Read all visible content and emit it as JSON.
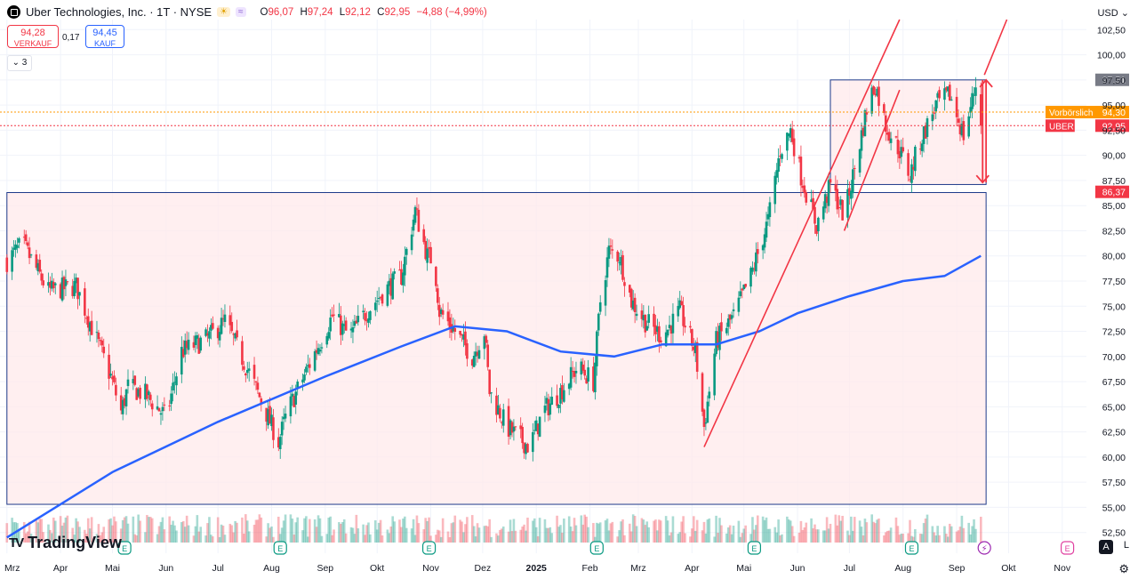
{
  "header": {
    "symbol_title": "Uber Technologies, Inc. · 1T · NYSE",
    "open_label": "O",
    "open": "96,07",
    "high_label": "H",
    "high": "97,24",
    "low_label": "L",
    "low": "92,12",
    "close_label": "C",
    "close": "92,95",
    "change": "−4,88 (−4,99%)",
    "sell_price": "94,28",
    "sell_label": "VERKAUF",
    "spread": "0,17",
    "buy_price": "94,45",
    "buy_label": "KAUF",
    "indicator_count": "3",
    "currency": "USD",
    "watermark": "TradingView",
    "watermark_icon": "TV",
    "auto_button": "A",
    "log_button": "L"
  },
  "colors": {
    "up": "#089981",
    "down": "#f23645",
    "ma": "#2962ff",
    "zone_fill": "#ffe9eb",
    "zone_border": "#1e3a8a",
    "trend_line": "#f23645",
    "premarket": "#ff9800"
  },
  "chart_data": {
    "type": "candlestick",
    "title": "Uber Technologies, Inc. · 1T · NYSE",
    "yaxis": {
      "ticks": [
        "52,50",
        "55,00",
        "57,50",
        "60,00",
        "62,50",
        "65,00",
        "67,50",
        "70,00",
        "72,50",
        "75,00",
        "77,50",
        "80,00",
        "82,50",
        "85,00",
        "87,50",
        "90,00",
        "92,50",
        "95,00",
        "97,50",
        "100,00",
        "102,50"
      ],
      "range": [
        51.5,
        103.5
      ]
    },
    "xaxis": {
      "ticks": [
        "Mrz",
        "Apr",
        "Mai",
        "Jun",
        "Jul",
        "Aug",
        "Sep",
        "Okt",
        "Nov",
        "Dez",
        "2025",
        "Feb",
        "Mrz",
        "Apr",
        "Mai",
        "Jun",
        "Jul",
        "Aug",
        "Sep",
        "Okt",
        "Nov"
      ]
    },
    "price_anchors": [
      {
        "date": "2024-03-01",
        "close": 79.5
      },
      {
        "date": "2024-03-10",
        "close": 81.2
      },
      {
        "date": "2024-03-25",
        "close": 76.5
      },
      {
        "date": "2024-04-10",
        "close": 77.0
      },
      {
        "date": "2024-04-20",
        "close": 72.5
      },
      {
        "date": "2024-04-30",
        "close": 68.0
      },
      {
        "date": "2024-05-06",
        "close": 64.5
      },
      {
        "date": "2024-05-10",
        "close": 67.0
      },
      {
        "date": "2024-05-20",
        "close": 66.2
      },
      {
        "date": "2024-06-01",
        "close": 64.0
      },
      {
        "date": "2024-06-10",
        "close": 70.5
      },
      {
        "date": "2024-06-25",
        "close": 71.8
      },
      {
        "date": "2024-07-05",
        "close": 73.5
      },
      {
        "date": "2024-07-20",
        "close": 68.0
      },
      {
        "date": "2024-08-05",
        "close": 61.5
      },
      {
        "date": "2024-08-10",
        "close": 64.5
      },
      {
        "date": "2024-08-25",
        "close": 70.0
      },
      {
        "date": "2024-09-05",
        "close": 74.0
      },
      {
        "date": "2024-09-15",
        "close": 72.0
      },
      {
        "date": "2024-09-25",
        "close": 74.5
      },
      {
        "date": "2024-10-05",
        "close": 76.5
      },
      {
        "date": "2024-10-15",
        "close": 78.0
      },
      {
        "date": "2024-10-23",
        "close": 84.5
      },
      {
        "date": "2024-10-30",
        "close": 80.0
      },
      {
        "date": "2024-11-03",
        "close": 79.5
      },
      {
        "date": "2024-11-06",
        "close": 74.5
      },
      {
        "date": "2024-11-15",
        "close": 72.5
      },
      {
        "date": "2024-11-25",
        "close": 70.0
      },
      {
        "date": "2024-12-02",
        "close": 72.5
      },
      {
        "date": "2024-12-05",
        "close": 66.5
      },
      {
        "date": "2024-12-15",
        "close": 63.0
      },
      {
        "date": "2024-12-28",
        "close": 61.0
      },
      {
        "date": "2025-01-05",
        "close": 64.5
      },
      {
        "date": "2025-01-15",
        "close": 66.5
      },
      {
        "date": "2025-01-25",
        "close": 69.0
      },
      {
        "date": "2025-02-03",
        "close": 67.5
      },
      {
        "date": "2025-02-07",
        "close": 75.5
      },
      {
        "date": "2025-02-12",
        "close": 80.5
      },
      {
        "date": "2025-02-18",
        "close": 80.0
      },
      {
        "date": "2025-02-25",
        "close": 75.5
      },
      {
        "date": "2025-03-05",
        "close": 73.5
      },
      {
        "date": "2025-03-15",
        "close": 72.0
      },
      {
        "date": "2025-03-25",
        "close": 74.5
      },
      {
        "date": "2025-04-03",
        "close": 70.5
      },
      {
        "date": "2025-04-08",
        "close": 63.0
      },
      {
        "date": "2025-04-15",
        "close": 71.5
      },
      {
        "date": "2025-04-25",
        "close": 74.0
      },
      {
        "date": "2025-05-05",
        "close": 78.0
      },
      {
        "date": "2025-05-15",
        "close": 83.5
      },
      {
        "date": "2025-05-22",
        "close": 90.5
      },
      {
        "date": "2025-05-28",
        "close": 92.5
      },
      {
        "date": "2025-06-03",
        "close": 88.0
      },
      {
        "date": "2025-06-12",
        "close": 83.0
      },
      {
        "date": "2025-06-20",
        "close": 87.0
      },
      {
        "date": "2025-06-28",
        "close": 84.0
      },
      {
        "date": "2025-07-05",
        "close": 89.5
      },
      {
        "date": "2025-07-12",
        "close": 95.5
      },
      {
        "date": "2025-07-16",
        "close": 97.0
      },
      {
        "date": "2025-07-22",
        "close": 93.0
      },
      {
        "date": "2025-07-30",
        "close": 90.5
      },
      {
        "date": "2025-08-05",
        "close": 88.0
      },
      {
        "date": "2025-08-10",
        "close": 91.0
      },
      {
        "date": "2025-08-20",
        "close": 95.0
      },
      {
        "date": "2025-08-28",
        "close": 96.0
      },
      {
        "date": "2025-09-05",
        "close": 92.0
      },
      {
        "date": "2025-09-10",
        "close": 95.5
      },
      {
        "date": "2025-09-13",
        "close": 97.8
      },
      {
        "date": "2025-09-15",
        "close": 92.95
      }
    ],
    "moving_average": [
      {
        "date": "2024-03-01",
        "value": 52.0
      },
      {
        "date": "2024-05-01",
        "value": 58.5
      },
      {
        "date": "2024-07-01",
        "value": 63.5
      },
      {
        "date": "2024-09-01",
        "value": 68.0
      },
      {
        "date": "2024-10-15",
        "value": 71.0
      },
      {
        "date": "2024-11-15",
        "value": 73.0
      },
      {
        "date": "2024-12-15",
        "value": 72.5
      },
      {
        "date": "2025-01-15",
        "value": 70.5
      },
      {
        "date": "2025-02-15",
        "value": 70.0
      },
      {
        "date": "2025-03-15",
        "value": 71.2
      },
      {
        "date": "2025-04-15",
        "value": 71.2
      },
      {
        "date": "2025-05-10",
        "value": 72.5
      },
      {
        "date": "2025-06-01",
        "value": 74.3
      },
      {
        "date": "2025-07-01",
        "value": 76.0
      },
      {
        "date": "2025-08-01",
        "value": 77.5
      },
      {
        "date": "2025-08-25",
        "value": 78.0
      },
      {
        "date": "2025-09-15",
        "value": 80.0
      }
    ],
    "zones": [
      {
        "from": "2024-03-01",
        "to": "2025-09-18",
        "low": 55.3,
        "high": 86.3
      },
      {
        "from": "2025-06-20",
        "to": "2025-09-18",
        "low": 87.1,
        "high": 97.5
      }
    ],
    "trend_lines": [
      {
        "from": {
          "date": "2025-04-08",
          "value": 61.0
        },
        "to": {
          "date": "2025-07-30",
          "value": 103.5
        }
      },
      {
        "from": {
          "date": "2025-06-28",
          "value": 82.5
        },
        "to": {
          "date": "2025-07-30",
          "value": 96.5
        }
      },
      {
        "from": {
          "date": "2025-09-17",
          "value": 98.0
        },
        "to": {
          "date": "2025-09-30",
          "value": 103.5
        }
      }
    ],
    "arrows": [
      {
        "date": "2025-09-16",
        "from": 97.5,
        "to": 87.3
      },
      {
        "date": "2025-09-18",
        "from": 87.3,
        "to": 97.5
      }
    ],
    "price_lines": [
      {
        "label": "Vorbörslich",
        "value": 94.3,
        "text": "94,30",
        "color": "#ff9800"
      },
      {
        "label": "UBER",
        "value": 92.95,
        "text": "92,95",
        "color": "#f23645"
      }
    ],
    "axis_marks": [
      {
        "value": 97.51,
        "text": "97,51",
        "color": "#787b86"
      },
      {
        "value": 86.37,
        "text": "86,37",
        "color": "#f23645"
      }
    ],
    "earnings_markers": [
      "2024-05-08",
      "2024-08-06",
      "2024-10-31",
      "2025-02-05",
      "2025-05-07",
      "2025-08-06"
    ],
    "earnings_icon": "E",
    "dividend_markers": [
      "2025-09-17"
    ],
    "upcoming_earnings": [
      "2025-11-04"
    ]
  }
}
